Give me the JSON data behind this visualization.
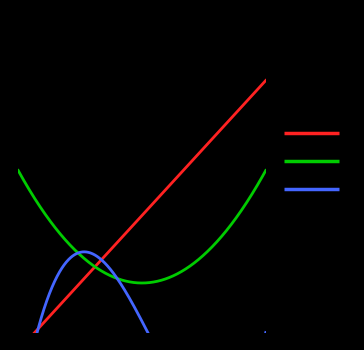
{
  "background_color": "#000000",
  "axis_bg_color": "#000000",
  "line1_color": "#ff2222",
  "line2_color": "#00cc00",
  "line3_color": "#4466ff",
  "xlim": [
    0,
    10
  ],
  "ylim": [
    -5,
    30
  ],
  "poly1_coeffs": [
    3.0,
    -7.0
  ],
  "poly2_coeffs": [
    0.5,
    -5.0,
    13.0
  ],
  "poly3_coeffs": [
    0.25,
    -4.0,
    16.0,
    -15.0
  ],
  "legend_colors": [
    "#ff2222",
    "#00cc00",
    "#4466ff"
  ],
  "linewidth": 2.0
}
